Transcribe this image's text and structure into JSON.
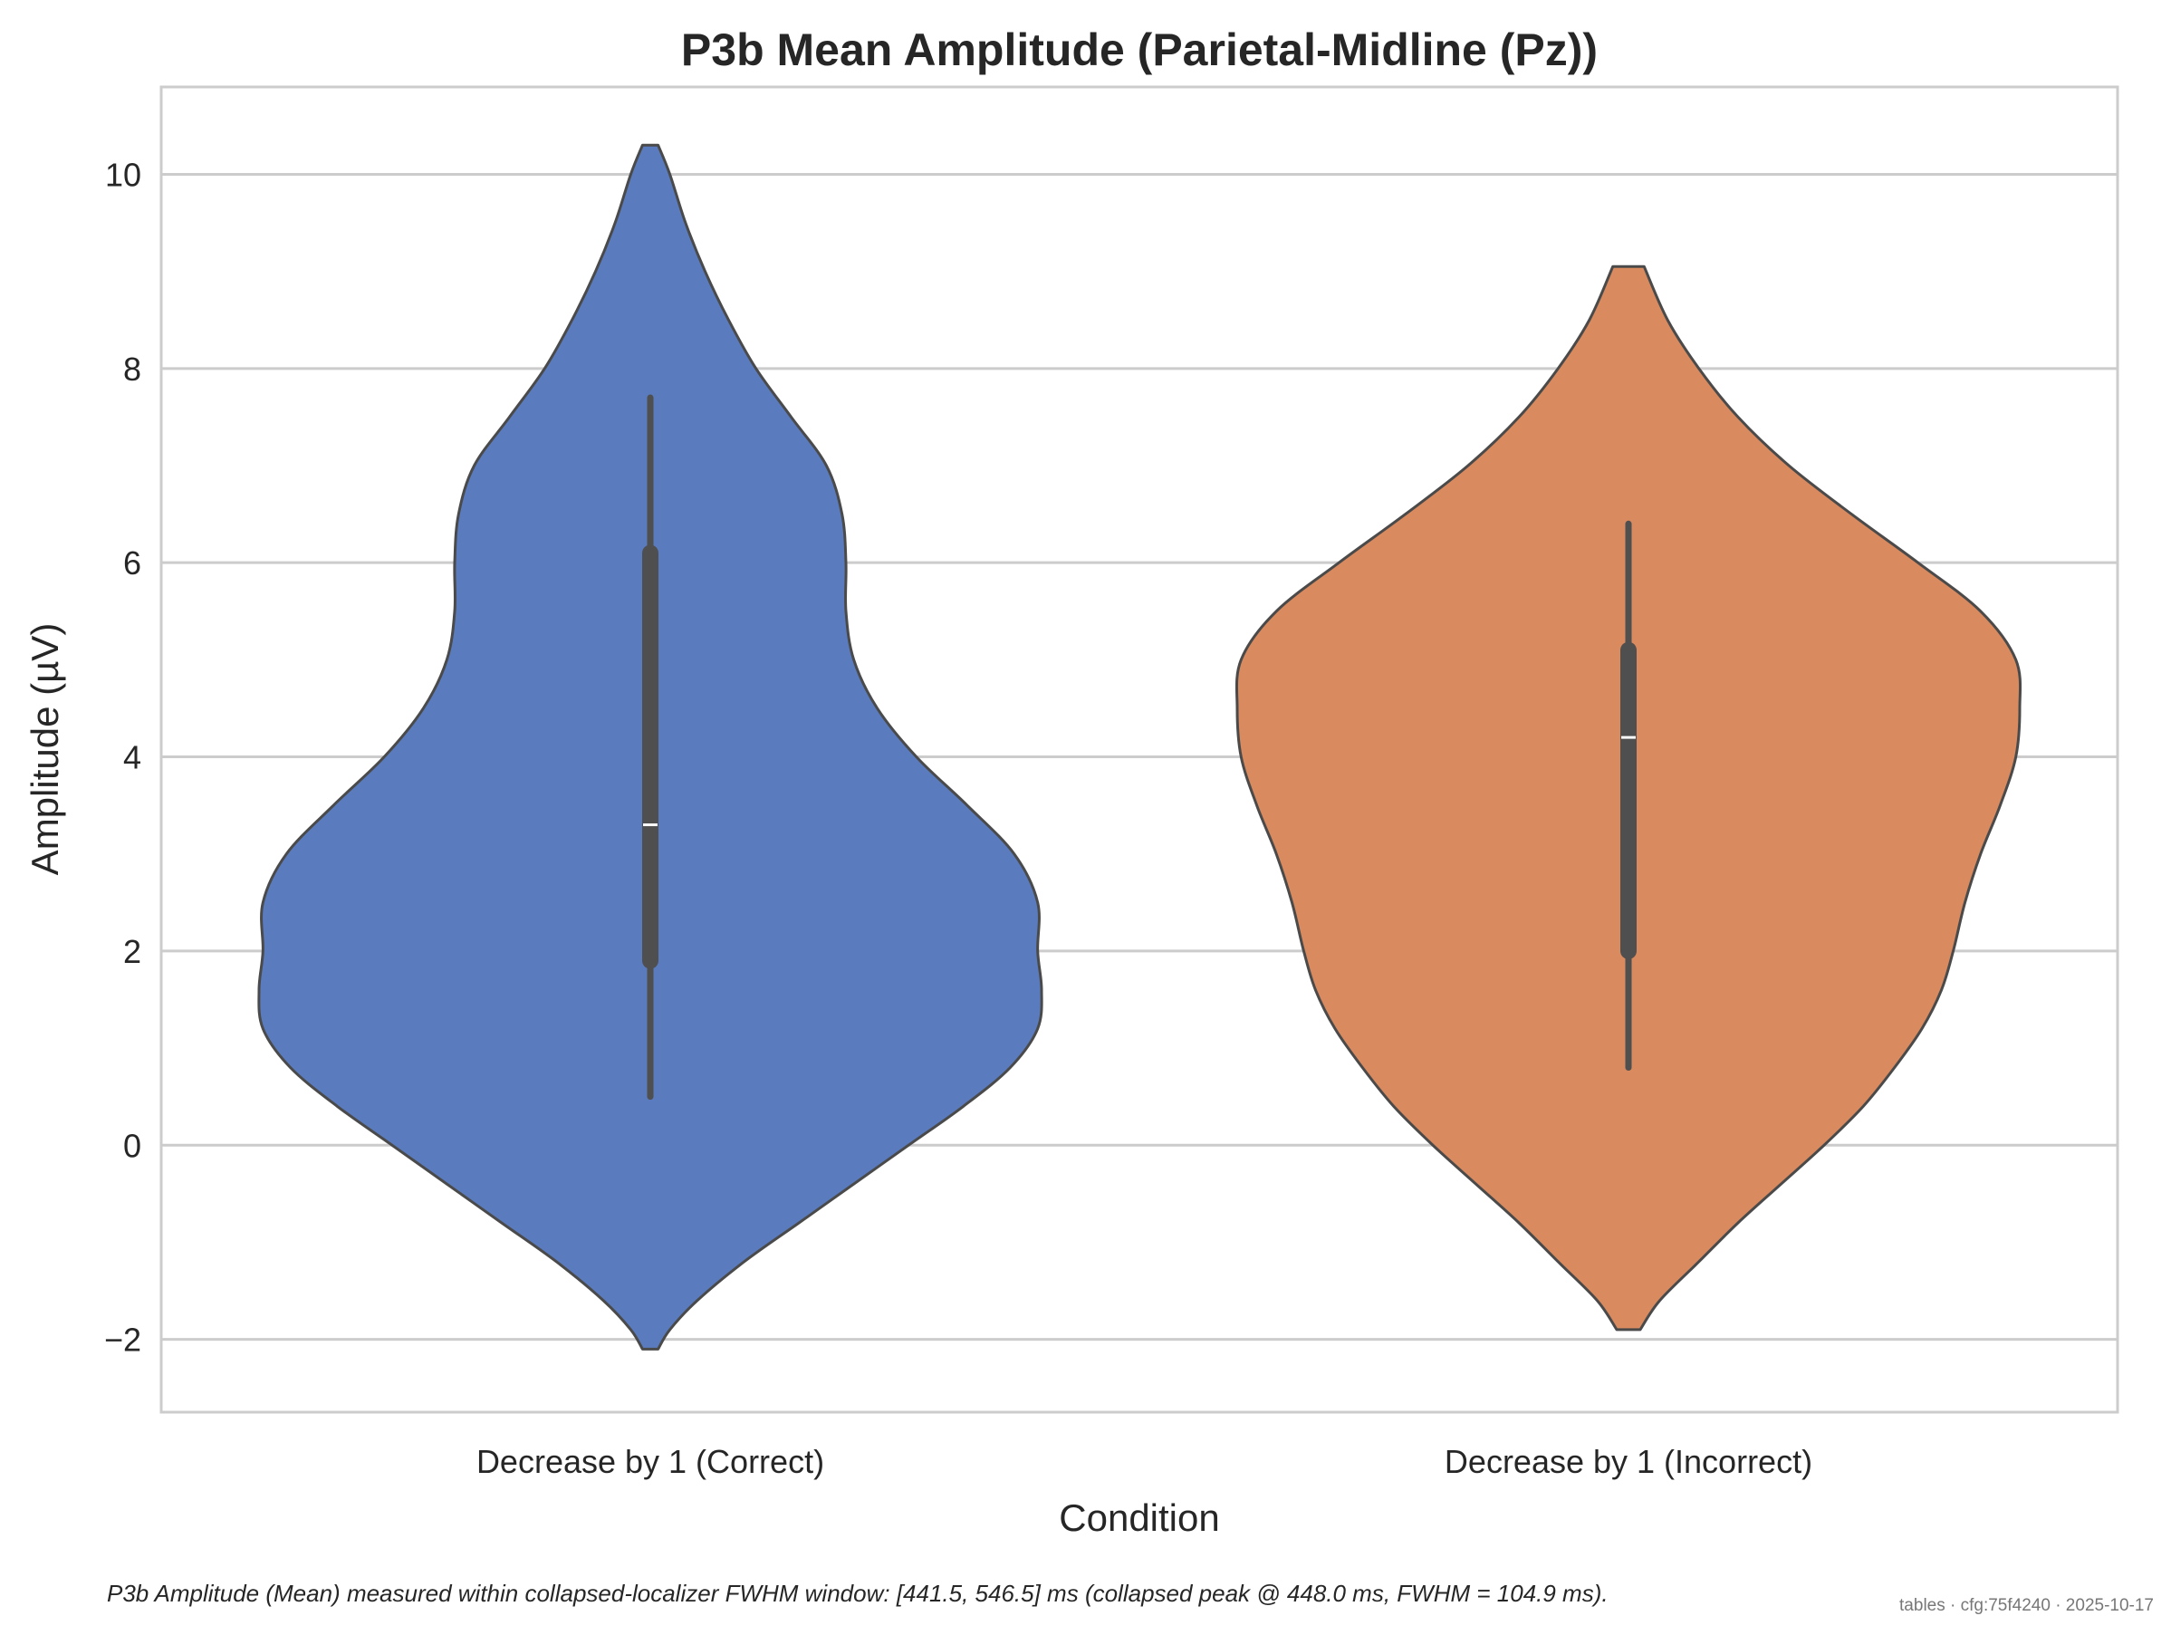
{
  "chart_data": {
    "type": "violin",
    "title": "P3b Mean Amplitude (Parietal-Midline (Pz))",
    "xlabel": "Condition",
    "ylabel": "Amplitude (µV)",
    "ylim": [
      -2.75,
      10.9
    ],
    "yticks": [
      -2,
      0,
      2,
      4,
      6,
      8,
      10
    ],
    "ytick_labels": [
      "−2",
      "0",
      "2",
      "4",
      "6",
      "8",
      "10"
    ],
    "grid": "horizontal",
    "categories": [
      "Decrease by 1 (Correct)",
      "Decrease by 1 (Incorrect)"
    ],
    "series": [
      {
        "category": "Decrease by 1 (Correct)",
        "color": "#5a7cbe",
        "range": [
          -2.1,
          10.3
        ],
        "whisker": [
          0.5,
          7.7
        ],
        "q1": 1.9,
        "median": 3.3,
        "q3": 6.1,
        "density_profile": [
          [
            -2.1,
            0.02
          ],
          [
            -1.9,
            0.05
          ],
          [
            -1.6,
            0.12
          ],
          [
            -1.2,
            0.24
          ],
          [
            -0.8,
            0.38
          ],
          [
            -0.4,
            0.52
          ],
          [
            0.0,
            0.66
          ],
          [
            0.4,
            0.8
          ],
          [
            0.8,
            0.92
          ],
          [
            1.2,
            0.99
          ],
          [
            1.6,
            1.0
          ],
          [
            2.0,
            0.99
          ],
          [
            2.5,
            0.99
          ],
          [
            3.0,
            0.93
          ],
          [
            3.5,
            0.81
          ],
          [
            4.0,
            0.68
          ],
          [
            4.5,
            0.58
          ],
          [
            5.0,
            0.52
          ],
          [
            5.5,
            0.5
          ],
          [
            6.0,
            0.5
          ],
          [
            6.5,
            0.49
          ],
          [
            7.0,
            0.45
          ],
          [
            7.5,
            0.36
          ],
          [
            8.0,
            0.27
          ],
          [
            8.5,
            0.2
          ],
          [
            9.0,
            0.14
          ],
          [
            9.5,
            0.09
          ],
          [
            10.0,
            0.05
          ],
          [
            10.3,
            0.02
          ]
        ]
      },
      {
        "category": "Decrease by 1 (Incorrect)",
        "color": "#d98a5f",
        "range": [
          -1.9,
          9.05
        ],
        "whisker": [
          0.8,
          6.4
        ],
        "q1": 2.0,
        "median": 4.2,
        "q3": 5.1,
        "density_profile": [
          [
            -1.9,
            0.03
          ],
          [
            -1.6,
            0.08
          ],
          [
            -1.2,
            0.18
          ],
          [
            -0.8,
            0.28
          ],
          [
            -0.4,
            0.39
          ],
          [
            0.0,
            0.5
          ],
          [
            0.4,
            0.6
          ],
          [
            0.8,
            0.68
          ],
          [
            1.2,
            0.75
          ],
          [
            1.6,
            0.8
          ],
          [
            2.0,
            0.83
          ],
          [
            2.5,
            0.86
          ],
          [
            3.0,
            0.9
          ],
          [
            3.5,
            0.95
          ],
          [
            4.0,
            0.99
          ],
          [
            4.5,
            1.0
          ],
          [
            5.0,
            0.99
          ],
          [
            5.5,
            0.9
          ],
          [
            6.0,
            0.74
          ],
          [
            6.5,
            0.57
          ],
          [
            7.0,
            0.41
          ],
          [
            7.5,
            0.28
          ],
          [
            8.0,
            0.18
          ],
          [
            8.5,
            0.1
          ],
          [
            9.05,
            0.04
          ]
        ]
      }
    ],
    "footnote": "P3b Amplitude (Mean) measured within collapsed-localizer FWHM window: [441.5, 546.5] ms (collapsed peak @ 448.0 ms, FWHM = 104.9 ms).",
    "stamp": "tables · cfg:75f4240 · 2025-10-17"
  }
}
